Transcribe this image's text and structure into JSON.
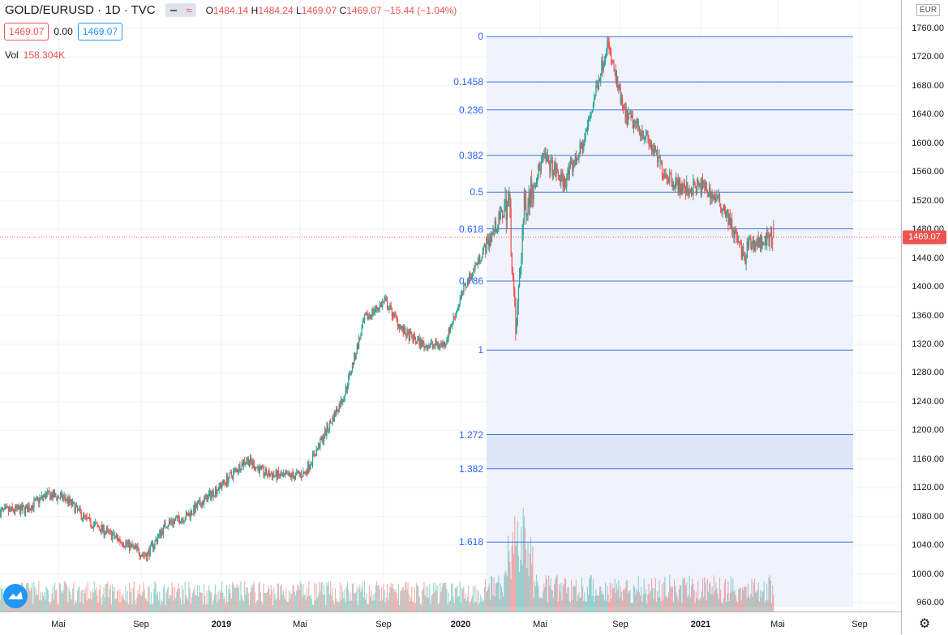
{
  "header": {
    "symbol": "GOLD/EURUSD · 1D · TVC",
    "ohlc": {
      "o_label": "O",
      "o": "1484.14",
      "h_label": "H",
      "h": "1484.24",
      "l_label": "L",
      "l": "1469.07",
      "c_label": "C",
      "c": "1469.07",
      "change": "−15.44 (−1.04%)"
    },
    "sell_price": "1469.07",
    "spread": "0.00",
    "buy_price": "1469.07",
    "volume_label": "Vol",
    "volume_value": "158.304K"
  },
  "price_axis": {
    "currency": "EUR",
    "current_price": "1469.07",
    "labels": [
      "1760.00",
      "1720.00",
      "1680.00",
      "1640.00",
      "1600.00",
      "1560.00",
      "1520.00",
      "1480.00",
      "1440.00",
      "1400.00",
      "1360.00",
      "1320.00",
      "1280.00",
      "1240.00",
      "1200.00",
      "1160.00",
      "1120.00",
      "1080.00",
      "1040.00",
      "1000.00",
      "960.00"
    ]
  },
  "time_axis": {
    "labels": [
      "Mai",
      "Sep",
      "2019",
      "Mai",
      "Sep",
      "2020",
      "Mai",
      "Sep",
      "2021",
      "Mai",
      "Sep"
    ]
  },
  "fibonacci": {
    "levels": [
      "0",
      "0.1458",
      "0.236",
      "0.382",
      "0.5",
      "0.618",
      "0.786",
      "1",
      "1.272",
      "1.382",
      "1.618"
    ],
    "prices": [
      1748.5,
      1685.4,
      1646.3,
      1583.0,
      1531.8,
      1480.7,
      1407.9,
      1311.8,
      1194.1,
      1146.4,
      1044.3
    ]
  },
  "colors": {
    "up": "#26a69a",
    "down": "#ef5350",
    "fib_line": "#2962ff",
    "fib_fill": "#eef2fc",
    "grid": "#f0f3fa"
  },
  "chart_data": {
    "type": "candlestick",
    "series_keypoints": {
      "dates": [
        "2018-01",
        "2018-03",
        "2018-04",
        "2018-05",
        "2018-06",
        "2018-08",
        "2018-09",
        "2018-10",
        "2018-11",
        "2019-01",
        "2019-02",
        "2019-03",
        "2019-04",
        "2019-05",
        "2019-06",
        "2019-07",
        "2019-08",
        "2019-09",
        "2019-10",
        "2019-11",
        "2019-12",
        "2020-01",
        "2020-02",
        "2020-03-09",
        "2020-03-19",
        "2020-04",
        "2020-05",
        "2020-06",
        "2020-07",
        "2020-08-06",
        "2020-09",
        "2020-10",
        "2020-11",
        "2020-12",
        "2021-01",
        "2021-02",
        "2021-03-08",
        "2021-03",
        "2021-04-19"
      ],
      "close": [
        1085,
        1090,
        1110,
        1105,
        1075,
        1042,
        1025,
        1070,
        1080,
        1130,
        1160,
        1140,
        1135,
        1140,
        1195,
        1250,
        1355,
        1380,
        1335,
        1318,
        1320,
        1400,
        1455,
        1520,
        1330,
        1510,
        1580,
        1545,
        1600,
        1740,
        1640,
        1615,
        1560,
        1535,
        1540,
        1510,
        1430,
        1455,
        1469.07
      ]
    },
    "volume_last": "158.304K",
    "ylim": [
      940,
      1775
    ]
  }
}
